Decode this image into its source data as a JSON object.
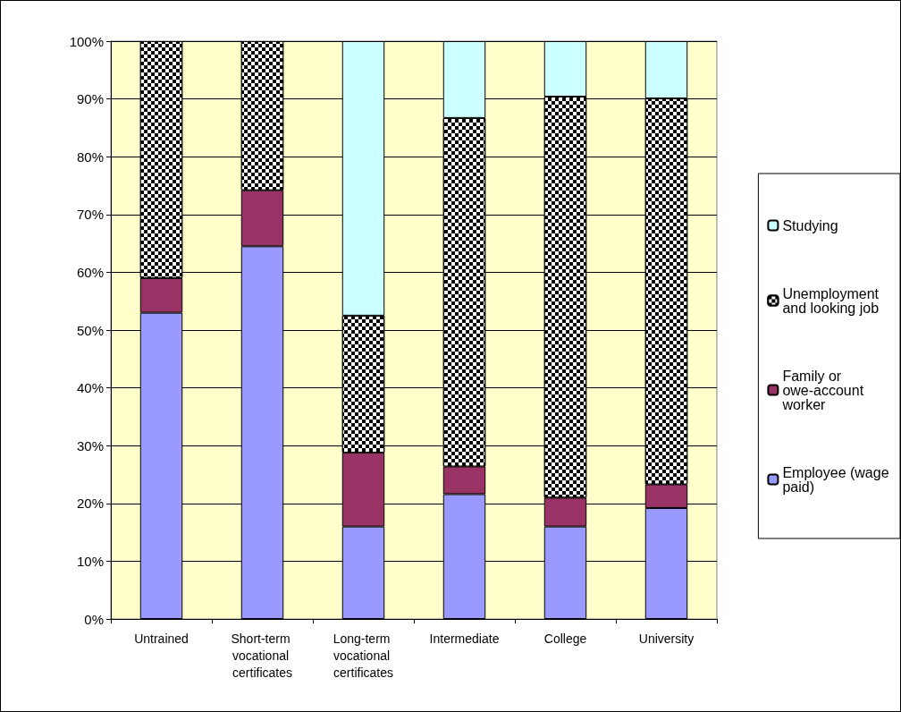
{
  "chart_data": {
    "type": "bar",
    "stacked": true,
    "categories": [
      "Untrained",
      "Short-term vocational certificates",
      "Long-term vocational certificates",
      "Intermediate",
      "College",
      "University"
    ],
    "series": [
      {
        "name": "Employee (wage paid)",
        "color": "#9999ff",
        "values": [
          53,
          64.5,
          16,
          21.6,
          16,
          19.2
        ]
      },
      {
        "name": "Family or owe-account worker",
        "color": "#993366",
        "values": [
          6,
          9.7,
          12.8,
          4.8,
          5,
          4.1
        ]
      },
      {
        "name": "Unemployment and looking job",
        "color": "#000000",
        "values": [
          41,
          25.8,
          23.7,
          60.3,
          69.4,
          66.8
        ]
      },
      {
        "name": "Studying",
        "color": "#ccffff",
        "values": [
          0,
          0,
          47.5,
          13.3,
          9.6,
          9.9
        ]
      }
    ],
    "ylim": [
      0,
      100
    ],
    "yticks": [
      {
        "value": 0,
        "label": "0%"
      },
      {
        "value": 10,
        "label": "10%"
      },
      {
        "value": 20,
        "label": "20%"
      },
      {
        "value": 30,
        "label": "30%"
      },
      {
        "value": 40,
        "label": "40%"
      },
      {
        "value": 50,
        "label": "50%"
      },
      {
        "value": 60,
        "label": "60%"
      },
      {
        "value": 70,
        "label": "70%"
      },
      {
        "value": 80,
        "label": "80%"
      },
      {
        "value": 90,
        "label": "90%"
      },
      {
        "value": 100,
        "label": "100%"
      }
    ],
    "grid": "y",
    "legend": "right"
  }
}
